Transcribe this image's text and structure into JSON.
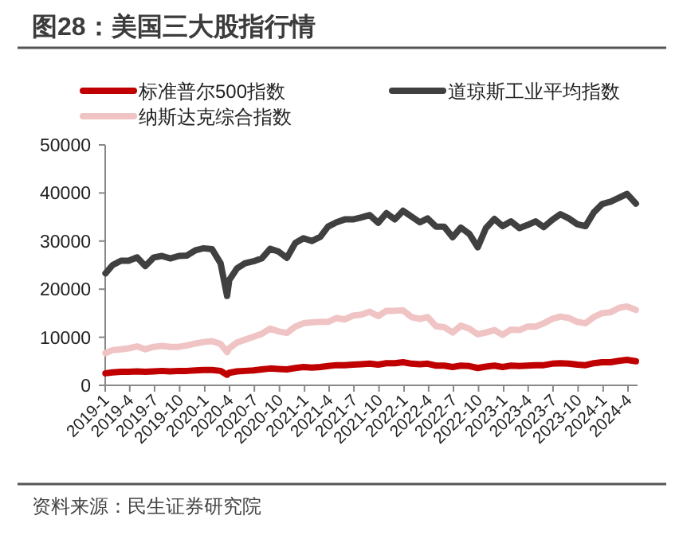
{
  "chart_data": {
    "type": "line",
    "title": "图28：美国三大股指行情",
    "x": [
      "2019-01-02",
      "2019-01-28",
      "2019-02-28",
      "2019-03-28",
      "2019-04-28",
      "2019-05-28",
      "2019-06-28",
      "2019-07-28",
      "2019-08-28",
      "2019-09-28",
      "2019-10-28",
      "2019-11-28",
      "2019-12-28",
      "2020-01-28",
      "2020-02-28",
      "2020-03-23",
      "2020-03-31",
      "2020-04-28",
      "2020-05-28",
      "2020-06-28",
      "2020-07-28",
      "2020-08-28",
      "2020-09-28",
      "2020-10-28",
      "2020-11-28",
      "2020-12-28",
      "2021-01-28",
      "2021-02-28",
      "2021-03-28",
      "2021-04-28",
      "2021-05-28",
      "2021-06-28",
      "2021-07-28",
      "2021-08-28",
      "2021-09-28",
      "2021-10-28",
      "2021-11-28",
      "2021-12-28",
      "2022-01-28",
      "2022-02-28",
      "2022-03-28",
      "2022-04-28",
      "2022-05-28",
      "2022-06-28",
      "2022-07-28",
      "2022-08-28",
      "2022-09-28",
      "2022-10-28",
      "2022-11-28",
      "2022-12-28",
      "2023-01-28",
      "2023-02-28",
      "2023-03-28",
      "2023-04-28",
      "2023-05-28",
      "2023-06-28",
      "2023-07-28",
      "2023-08-28",
      "2023-09-28",
      "2023-10-28",
      "2023-11-28",
      "2023-12-28",
      "2024-01-28",
      "2024-02-28",
      "2024-03-28",
      "2024-04-30"
    ],
    "series": [
      {
        "name": "标准普尔500指数",
        "color": "#c00000",
        "values": [
          2500,
          2700,
          2800,
          2800,
          2900,
          2800,
          2900,
          3000,
          2900,
          3000,
          3000,
          3100,
          3200,
          3200,
          3000,
          2200,
          2600,
          2900,
          3000,
          3100,
          3300,
          3500,
          3400,
          3300,
          3600,
          3800,
          3700,
          3800,
          4000,
          4200,
          4200,
          4300,
          4400,
          4500,
          4300,
          4600,
          4600,
          4800,
          4500,
          4400,
          4500,
          4100,
          4100,
          3800,
          4100,
          4000,
          3600,
          3900,
          4100,
          3800,
          4100,
          4000,
          4100,
          4200,
          4200,
          4500,
          4600,
          4500,
          4300,
          4200,
          4600,
          4800,
          4800,
          5100,
          5300,
          5000
        ]
      },
      {
        "name": "道琼斯工业平均指数",
        "color": "#404040",
        "values": [
          23300,
          25000,
          25900,
          25900,
          26600,
          24800,
          26600,
          26900,
          26400,
          26900,
          27000,
          28100,
          28500,
          28300,
          25400,
          18600,
          21900,
          24300,
          25400,
          25800,
          26400,
          28400,
          27800,
          26500,
          29600,
          30600,
          30000,
          30900,
          33000,
          33900,
          34500,
          34500,
          34900,
          35400,
          33800,
          35800,
          34500,
          36300,
          35100,
          33900,
          34700,
          33000,
          33000,
          30800,
          32800,
          31500,
          28700,
          32700,
          34600,
          33100,
          34100,
          32700,
          33300,
          34100,
          32900,
          34400,
          35600,
          34700,
          33500,
          33100,
          36000,
          37700,
          38200,
          39000,
          39800,
          37800
        ]
      },
      {
        "name": "纳斯达克综合指数",
        "color": "#f0c4c4",
        "values": [
          6700,
          7300,
          7500,
          7700,
          8100,
          7500,
          8000,
          8200,
          8000,
          8000,
          8300,
          8700,
          9000,
          9200,
          8600,
          6900,
          7700,
          8900,
          9500,
          10100,
          10700,
          11800,
          11200,
          10900,
          12200,
          12900,
          13100,
          13200,
          13200,
          14000,
          13700,
          14500,
          14700,
          15300,
          14400,
          15500,
          15500,
          15600,
          14200,
          13800,
          14200,
          12300,
          12100,
          11000,
          12400,
          11800,
          10600,
          11000,
          11500,
          10500,
          11600,
          11500,
          12200,
          12200,
          12900,
          13800,
          14300,
          14000,
          13200,
          12900,
          14200,
          15000,
          15200,
          16100,
          16400,
          15700
        ]
      }
    ],
    "xlim": [
      "2019-01-01",
      "2024-05-06"
    ],
    "xticks": [
      {
        "value": "2019-01-01",
        "label": "2019-1"
      },
      {
        "value": "2019-04-01",
        "label": "2019-4"
      },
      {
        "value": "2019-07-01",
        "label": "2019-7"
      },
      {
        "value": "2019-10-01",
        "label": "2019-10"
      },
      {
        "value": "2020-01-01",
        "label": "2020-1"
      },
      {
        "value": "2020-04-01",
        "label": "2020-4"
      },
      {
        "value": "2020-07-01",
        "label": "2020-7"
      },
      {
        "value": "2020-10-01",
        "label": "2020-10"
      },
      {
        "value": "2021-01-01",
        "label": "2021-1"
      },
      {
        "value": "2021-04-01",
        "label": "2021-4"
      },
      {
        "value": "2021-07-01",
        "label": "2021-7"
      },
      {
        "value": "2021-10-01",
        "label": "2021-10"
      },
      {
        "value": "2022-01-01",
        "label": "2022-1"
      },
      {
        "value": "2022-04-01",
        "label": "2022-4"
      },
      {
        "value": "2022-07-01",
        "label": "2022-7"
      },
      {
        "value": "2022-10-01",
        "label": "2022-10"
      },
      {
        "value": "2023-01-01",
        "label": "2023-1"
      },
      {
        "value": "2023-04-01",
        "label": "2023-4"
      },
      {
        "value": "2023-07-01",
        "label": "2023-7"
      },
      {
        "value": "2023-10-01",
        "label": "2023-10"
      },
      {
        "value": "2024-01-01",
        "label": "2024-1"
      },
      {
        "value": "2024-04-01",
        "label": "2024-4"
      }
    ],
    "ylim": [
      0,
      50000
    ],
    "yticks": [
      0,
      10000,
      20000,
      30000,
      40000,
      50000
    ],
    "legend": "top",
    "grid": false,
    "marker": "none",
    "line_style": "solid",
    "annotations": [
      "资料来源：民生证券研究院"
    ]
  }
}
